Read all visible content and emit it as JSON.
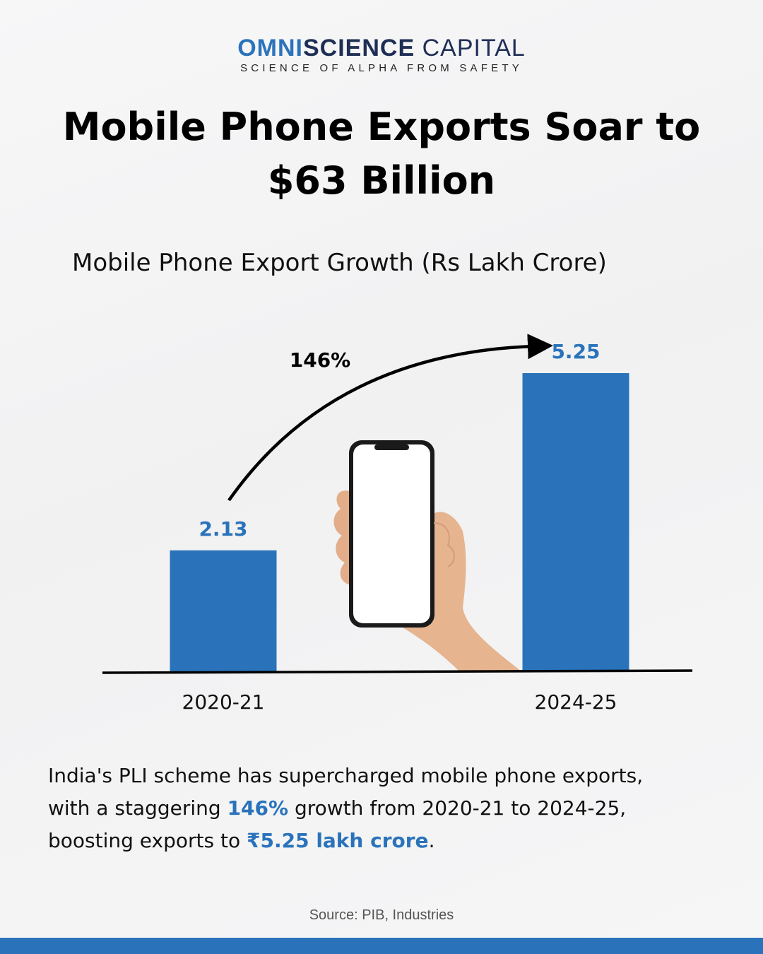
{
  "brand": {
    "part1": "OMNI",
    "part2": "SCIENCE",
    "part3": "CAPITAL",
    "tagline": "SCIENCE OF ALPHA FROM SAFETY"
  },
  "headline": {
    "line1": "Mobile Phone Exports Soar to",
    "line2": "$63 Billion"
  },
  "chart_data": {
    "type": "bar",
    "title": "Mobile Phone Export Growth (Rs Lakh Crore)",
    "categories": [
      "2020-21",
      "2024-25"
    ],
    "values": [
      2.13,
      5.25
    ],
    "value_labels": [
      "2.13",
      "5.25"
    ],
    "growth_annotation": "146%",
    "ylim": [
      0,
      5.25
    ],
    "grid": false,
    "bar_color": "#2a73bb"
  },
  "body": {
    "part1": "India's PLI scheme has supercharged mobile phone exports,",
    "part2": "with a staggering ",
    "highlight1": "146%",
    "part3": " growth from 2020-21 to 2024-25,",
    "part4": "boosting exports to ",
    "highlight2": "₹5.25 lakh crore",
    "part5": "."
  },
  "source": "Source: PIB, Industries",
  "colors": {
    "accent": "#2a73bb",
    "brand_dark": "#1f2e55"
  },
  "illustration": {
    "icon": "hand-holding-phone-icon"
  }
}
